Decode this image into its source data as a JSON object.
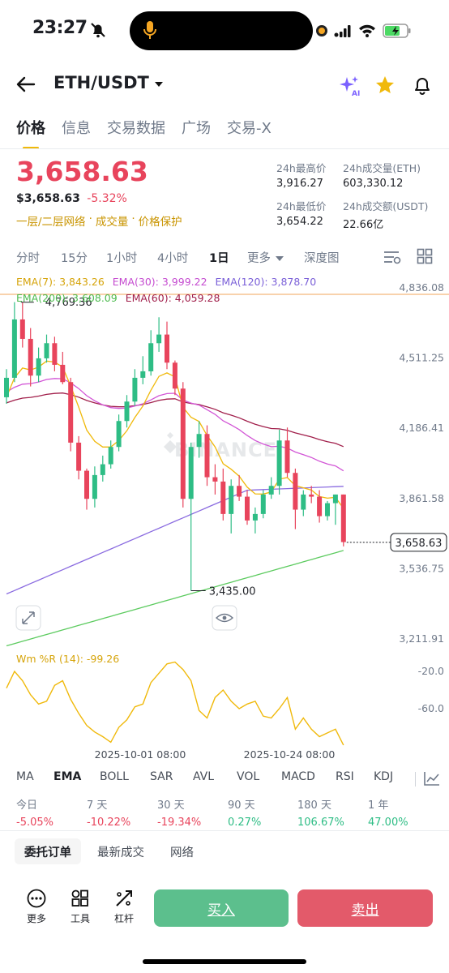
{
  "status": {
    "time": "23:27"
  },
  "nav": {
    "pair": "ETH/USDT",
    "ai_label": "AI"
  },
  "tabs": [
    "价格",
    "信息",
    "交易数据",
    "广场",
    "交易-X"
  ],
  "price": {
    "last": "3,658.63",
    "usd": "$3,658.63",
    "change": "-5.32%",
    "tags": [
      "一层/二层网络",
      "成交量",
      "价格保护"
    ]
  },
  "stats": {
    "high_label": "24h最高价",
    "high": "3,916.27",
    "low_label": "24h最低价",
    "low": "3,654.22",
    "vol_eth_label": "24h成交量(ETH)",
    "vol_eth": "603,330.12",
    "vol_usdt_label": "24h成交额(USDT)",
    "vol_usdt": "22.66亿"
  },
  "timeframes": [
    "分时",
    "15分",
    "1小时",
    "4小时",
    "1日",
    "更多",
    "深度图"
  ],
  "ema_legend": {
    "ema7": "EMA(7): 3,843.26",
    "ema30": "EMA(30): 3,999.22",
    "ema120": "EMA(120): 3,878.70",
    "ema200": "EMA(200): 3,608.09",
    "ema60": "EMA(60): 4,059.28"
  },
  "chart_data": {
    "type": "candlestick",
    "y_ticks": [
      "4,836.08",
      "4,511.25",
      "4,186.41",
      "3,861.58",
      "3,536.75",
      "3,211.91"
    ],
    "ylim": [
      3211.91,
      4836.08
    ],
    "last_price_label": "3,658.63",
    "last_price": 3658.63,
    "max_label": "4,769.36",
    "max_value": 4769.36,
    "min_label": "3,435.00",
    "min_value": 3435.0,
    "x_labels": [
      "2025-10-01 08:00",
      "2025-10-24 08:00"
    ],
    "watermark": "BINANCE",
    "ohlc": [
      [
        4330,
        4460,
        4300,
        4420
      ],
      [
        4420,
        4770,
        4400,
        4690
      ],
      [
        4690,
        4769,
        4560,
        4600
      ],
      [
        4600,
        4650,
        4380,
        4430
      ],
      [
        4430,
        4560,
        4400,
        4510
      ],
      [
        4510,
        4620,
        4490,
        4580
      ],
      [
        4580,
        4610,
        4450,
        4480
      ],
      [
        4480,
        4540,
        4390,
        4400
      ],
      [
        4400,
        4420,
        4080,
        4120
      ],
      [
        4120,
        4150,
        3950,
        3990
      ],
      [
        3990,
        4000,
        3810,
        3860
      ],
      [
        3860,
        4010,
        3820,
        3970
      ],
      [
        3970,
        4060,
        3940,
        4020
      ],
      [
        4020,
        4130,
        4000,
        4100
      ],
      [
        4100,
        4250,
        4080,
        4220
      ],
      [
        4220,
        4340,
        4190,
        4310
      ],
      [
        4310,
        4460,
        4290,
        4420
      ],
      [
        4420,
        4520,
        4390,
        4450
      ],
      [
        4450,
        4640,
        4430,
        4580
      ],
      [
        4580,
        4700,
        4540,
        4620
      ],
      [
        4620,
        4680,
        4460,
        4490
      ],
      [
        4490,
        4500,
        4340,
        4370
      ],
      [
        4370,
        4400,
        3820,
        3860
      ],
      [
        3860,
        4120,
        3435,
        4100
      ],
      [
        4100,
        4220,
        4050,
        4160
      ],
      [
        4160,
        4200,
        3920,
        3960
      ],
      [
        3960,
        4020,
        3880,
        3940
      ],
      [
        3940,
        4000,
        3760,
        3790
      ],
      [
        3790,
        3950,
        3700,
        3920
      ],
      [
        3920,
        3970,
        3850,
        3870
      ],
      [
        3870,
        3900,
        3740,
        3760
      ],
      [
        3760,
        3820,
        3700,
        3790
      ],
      [
        3790,
        3900,
        3770,
        3880
      ],
      [
        3880,
        3960,
        3860,
        3920
      ],
      [
        3920,
        4180,
        3880,
        4130
      ],
      [
        4130,
        4190,
        3960,
        3980
      ],
      [
        3980,
        4000,
        3720,
        3810
      ],
      [
        3810,
        3900,
        3780,
        3880
      ],
      [
        3880,
        3920,
        3840,
        3870
      ],
      [
        3870,
        3900,
        3750,
        3780
      ],
      [
        3780,
        3850,
        3760,
        3840
      ],
      [
        3840,
        3880,
        3740,
        3880
      ],
      [
        3880,
        3880,
        3640,
        3660
      ]
    ],
    "wr_indicator": {
      "label": "Wm %R (14): -99.26",
      "ticks": [
        "-20.0",
        "-60.0"
      ],
      "values": [
        -38,
        -20,
        -30,
        -45,
        -55,
        -52,
        -35,
        -30,
        -50,
        -65,
        -78,
        -85,
        -90,
        -96,
        -80,
        -72,
        -58,
        -55,
        -32,
        -22,
        -12,
        -10,
        -18,
        -30,
        -62,
        -70,
        -48,
        -40,
        -52,
        -60,
        -55,
        -52,
        -68,
        -70,
        -60,
        -48,
        -82,
        -70,
        -82,
        -90,
        -86,
        -82,
        -99
      ]
    }
  },
  "indicators": [
    "MA",
    "EMA",
    "BOLL",
    "SAR",
    "AVL",
    "VOL",
    "MACD",
    "RSI",
    "KDJ"
  ],
  "performance": [
    {
      "label": "今日",
      "value": "-5.05%",
      "dir": "down"
    },
    {
      "label": "7 天",
      "value": "-10.22%",
      "dir": "down"
    },
    {
      "label": "30 天",
      "value": "-19.34%",
      "dir": "down"
    },
    {
      "label": "90 天",
      "value": "0.27%",
      "dir": "up"
    },
    {
      "label": "180 天",
      "value": "106.67%",
      "dir": "up"
    },
    {
      "label": "1 年",
      "value": "47.00%",
      "dir": "up"
    }
  ],
  "sub_tabs": [
    "委托订单",
    "最新成交",
    "网络"
  ],
  "actions": {
    "more": "更多",
    "tools": "工具",
    "leverage": "杠杆",
    "buy": "买入",
    "sell": "卖出"
  },
  "colors": {
    "up": "#2ebd85",
    "down": "#e8445c",
    "accent": "#f0b90b",
    "ema7": "#f0b90b",
    "ema30": "#d256d6",
    "ema120": "#8a6be0",
    "ema200": "#5ccb5f",
    "ema60": "#a11f4b"
  }
}
